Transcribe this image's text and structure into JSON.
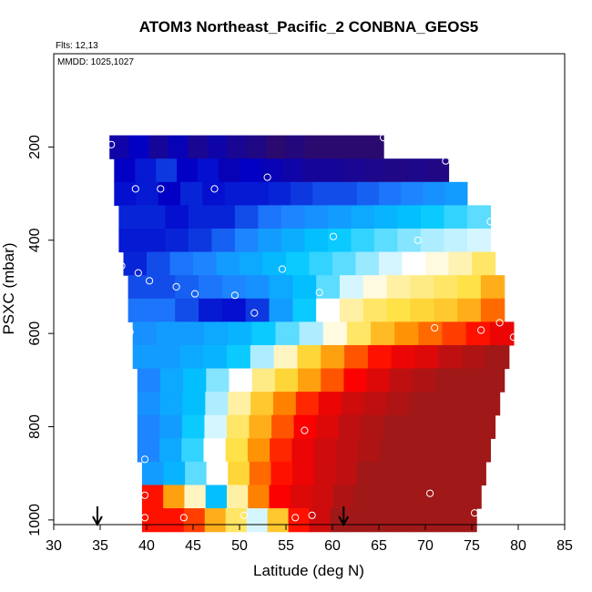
{
  "chart_data": {
    "type": "heatmap",
    "title": "ATOM3 Northeast_Pacific_2 CONBNA_GEOS5",
    "annotations": {
      "flights": "Flts: 12,13",
      "dates": "MMDD: 1025,1027"
    },
    "xlabel": "Latitude (deg N)",
    "ylabel": "PSXC (mbar)",
    "xlim": [
      30,
      85
    ],
    "ylim": [
      1010,
      0
    ],
    "x_ticks": [
      "30",
      "35",
      "40",
      "45",
      "50",
      "55",
      "60",
      "65",
      "70",
      "75",
      "80",
      "85"
    ],
    "y_ticks": [
      "200",
      "400",
      "600",
      "800",
      "1000"
    ],
    "color_scale": [
      "#2a0a6e",
      "#0000c8",
      "#1e7fff",
      "#00c8ff",
      "#ffffff",
      "#ffe040",
      "#ff8c00",
      "#ff0000",
      "#a01818"
    ],
    "rows": [
      {
        "p": 200,
        "lat_start": 36,
        "lat_end": 65.5,
        "values": [
          0.08,
          0.12,
          0.06,
          0.1,
          0.05,
          0.08,
          0.05,
          0.03,
          0.0,
          0.02,
          0.0,
          0.0,
          -0.02,
          -0.04
        ]
      },
      {
        "p": 250,
        "lat_start": 36.5,
        "lat_end": 72.5,
        "values": [
          0.12,
          0.15,
          0.18,
          0.12,
          0.14,
          0.1,
          0.12,
          0.1,
          0.08,
          0.06,
          0.06,
          0.05,
          0.04,
          0.03,
          0.04,
          0.03
        ]
      },
      {
        "p": 300,
        "lat_start": 36.5,
        "lat_end": 74.5,
        "values": [
          0.14,
          0.15,
          0.12,
          0.16,
          0.14,
          0.15,
          0.15,
          0.16,
          0.18,
          0.2,
          0.2,
          0.22,
          0.24,
          0.26,
          0.28,
          0.3
        ]
      },
      {
        "p": 350,
        "lat_start": 37,
        "lat_end": 77,
        "values": [
          0.16,
          0.16,
          0.14,
          0.16,
          0.16,
          0.2,
          0.24,
          0.26,
          0.28,
          0.3,
          0.32,
          0.34,
          0.36,
          0.38,
          0.4,
          0.42
        ]
      },
      {
        "p": 400,
        "lat_start": 37,
        "lat_end": 77,
        "values": [
          0.15,
          0.15,
          0.16,
          0.18,
          0.22,
          0.26,
          0.3,
          0.33,
          0.36,
          0.38,
          0.4,
          0.42,
          0.44,
          0.46,
          0.47,
          0.48
        ]
      },
      {
        "p": 450,
        "lat_start": 37.5,
        "lat_end": 77.5,
        "values": [
          0.16,
          0.2,
          0.24,
          0.26,
          0.3,
          0.32,
          0.35,
          0.38,
          0.4,
          0.42,
          0.45,
          0.48,
          0.5,
          0.52,
          0.55,
          0.6
        ]
      },
      {
        "p": 500,
        "lat_start": 38,
        "lat_end": 78.5,
        "values": [
          0.2,
          0.2,
          0.22,
          0.24,
          0.26,
          0.28,
          0.32,
          0.36,
          0.42,
          0.48,
          0.52,
          0.56,
          0.58,
          0.6,
          0.62,
          0.7
        ]
      },
      {
        "p": 550,
        "lat_start": 38,
        "lat_end": 78.5,
        "values": [
          0.24,
          0.24,
          0.2,
          0.15,
          0.14,
          0.18,
          0.3,
          0.38,
          0.5,
          0.56,
          0.6,
          0.62,
          0.64,
          0.66,
          0.7,
          0.78
        ]
      },
      {
        "p": 600,
        "lat_start": 38.5,
        "lat_end": 79.5,
        "values": [
          0.28,
          0.3,
          0.3,
          0.32,
          0.34,
          0.38,
          0.42,
          0.46,
          0.52,
          0.6,
          0.68,
          0.74,
          0.78,
          0.82,
          0.86,
          0.9
        ]
      },
      {
        "p": 650,
        "lat_start": 38.5,
        "lat_end": 79,
        "values": [
          0.3,
          0.3,
          0.32,
          0.34,
          0.38,
          0.46,
          0.54,
          0.64,
          0.72,
          0.8,
          0.86,
          0.9,
          0.92,
          0.96,
          0.98,
          1.0
        ]
      },
      {
        "p": 700,
        "lat_start": 39,
        "lat_end": 78.5,
        "values": [
          0.26,
          0.32,
          0.36,
          0.44,
          0.5,
          0.58,
          0.64,
          0.72,
          0.8,
          0.88,
          0.92,
          0.96,
          0.98,
          1.0,
          1.0,
          1.0
        ]
      },
      {
        "p": 750,
        "lat_start": 39,
        "lat_end": 78,
        "values": [
          0.28,
          0.32,
          0.36,
          0.46,
          0.56,
          0.66,
          0.76,
          0.84,
          0.9,
          0.94,
          0.96,
          0.98,
          1.0,
          1.0,
          1.0,
          1.0
        ]
      },
      {
        "p": 800,
        "lat_start": 39,
        "lat_end": 77.5,
        "values": [
          0.26,
          0.3,
          0.38,
          0.48,
          0.6,
          0.7,
          0.8,
          0.88,
          0.92,
          0.96,
          0.98,
          1.0,
          1.0,
          1.0,
          1.0,
          1.0
        ]
      },
      {
        "p": 850,
        "lat_start": 39,
        "lat_end": 77,
        "values": [
          0.26,
          0.32,
          0.4,
          0.5,
          0.62,
          0.74,
          0.84,
          0.9,
          0.94,
          0.96,
          0.98,
          1.0,
          1.0,
          1.0,
          1.0,
          1.0
        ]
      },
      {
        "p": 900,
        "lat_start": 39.5,
        "lat_end": 76.5,
        "values": [
          0.3,
          0.34,
          0.42,
          0.5,
          0.64,
          0.78,
          0.86,
          0.9,
          0.94,
          0.96,
          1.0,
          1.0,
          1.0,
          1.0,
          1.0,
          1.0
        ]
      },
      {
        "p": 950,
        "lat_start": 39.5,
        "lat_end": 76,
        "values": [
          0.86,
          0.72,
          0.54,
          0.36,
          0.56,
          0.76,
          0.88,
          0.92,
          0.94,
          0.98,
          1.0,
          1.0,
          1.0,
          1.0,
          1.0,
          1.0
        ]
      },
      {
        "p": 1000,
        "lat_start": 39.5,
        "lat_end": 75.5,
        "values": [
          0.86,
          0.86,
          0.82,
          0.7,
          0.6,
          0.48,
          0.66,
          0.86,
          0.94,
          1.0,
          1.0,
          1.0,
          1.0,
          1.0,
          1.0,
          1.0
        ]
      }
    ],
    "obs_points": [
      {
        "x": 36.2,
        "y": 195
      },
      {
        "x": 65.5,
        "y": 180
      },
      {
        "x": 72.2,
        "y": 230
      },
      {
        "x": 38.8,
        "y": 290
      },
      {
        "x": 41.5,
        "y": 290
      },
      {
        "x": 47.3,
        "y": 290
      },
      {
        "x": 53.0,
        "y": 265
      },
      {
        "x": 77.0,
        "y": 360
      },
      {
        "x": 60.1,
        "y": 392
      },
      {
        "x": 69.2,
        "y": 400
      },
      {
        "x": 37.3,
        "y": 455
      },
      {
        "x": 39.1,
        "y": 470
      },
      {
        "x": 40.3,
        "y": 487
      },
      {
        "x": 43.2,
        "y": 500
      },
      {
        "x": 45.2,
        "y": 515
      },
      {
        "x": 49.5,
        "y": 518
      },
      {
        "x": 54.6,
        "y": 462
      },
      {
        "x": 58.6,
        "y": 512
      },
      {
        "x": 51.6,
        "y": 556
      },
      {
        "x": 38.2,
        "y": 597
      },
      {
        "x": 71.0,
        "y": 588
      },
      {
        "x": 76.0,
        "y": 593
      },
      {
        "x": 78.0,
        "y": 577
      },
      {
        "x": 79.5,
        "y": 608
      },
      {
        "x": 57.0,
        "y": 808
      },
      {
        "x": 39.8,
        "y": 870
      },
      {
        "x": 39.8,
        "y": 947
      },
      {
        "x": 70.5,
        "y": 943
      },
      {
        "x": 39.8,
        "y": 995
      },
      {
        "x": 44.0,
        "y": 995
      },
      {
        "x": 50.5,
        "y": 990
      },
      {
        "x": 56.0,
        "y": 995
      },
      {
        "x": 57.8,
        "y": 990
      },
      {
        "x": 75.3,
        "y": 985
      }
    ],
    "arrows": [
      {
        "x": 34.7
      },
      {
        "x": 61.2
      }
    ]
  }
}
